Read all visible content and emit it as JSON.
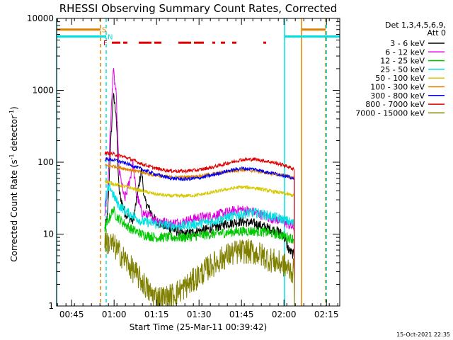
{
  "chart_data": {
    "type": "line",
    "title": "RHESSI Observing Summary Count Rates, Corrected",
    "xlabel": "Start Time (25-Mar-11 00:39:42)",
    "ylabel_main": "Corrected Count Rate (s",
    "ylabel_sup1": "-1",
    "ylabel_mid": " detector",
    "ylabel_sup2": "-1",
    "ylabel_end": ")",
    "yscale": "log",
    "xlim_minutes": [
      0,
      100
    ],
    "ylim": [
      1,
      10000
    ],
    "x_ticks": [
      {
        "t": 5.3,
        "label": "00:45"
      },
      {
        "t": 20.3,
        "label": "01:00"
      },
      {
        "t": 35.3,
        "label": "01:15"
      },
      {
        "t": 50.3,
        "label": "01:30"
      },
      {
        "t": 65.3,
        "label": "01:45"
      },
      {
        "t": 80.3,
        "label": "02:00"
      },
      {
        "t": 95.3,
        "label": "02:15"
      }
    ],
    "y_ticks": [
      {
        "v": 1,
        "label": "1"
      },
      {
        "v": 10,
        "label": "10"
      },
      {
        "v": 100,
        "label": "100"
      },
      {
        "v": 1000,
        "label": "1000"
      },
      {
        "v": 10000,
        "label": "10000"
      }
    ],
    "legend": {
      "header1": "Det 1,3,4,5,6,9,",
      "header2": "Att 0",
      "placement": "right"
    },
    "series": [
      {
        "name": "3 - 6 keV",
        "color": "#000000",
        "points": [
          [
            17,
            12
          ],
          [
            18,
            18
          ],
          [
            19,
            150
          ],
          [
            20,
            850
          ],
          [
            21,
            500
          ],
          [
            22,
            40
          ],
          [
            24,
            20
          ],
          [
            27,
            15
          ],
          [
            30,
            80
          ],
          [
            31,
            30
          ],
          [
            35,
            15
          ],
          [
            40,
            12
          ],
          [
            45,
            10
          ],
          [
            50,
            11
          ],
          [
            55,
            12
          ],
          [
            60,
            14
          ],
          [
            65,
            15
          ],
          [
            70,
            14
          ],
          [
            75,
            12
          ],
          [
            78,
            11
          ],
          [
            80,
            10
          ],
          [
            82,
            6
          ],
          [
            84,
            5
          ]
        ]
      },
      {
        "name": "6 - 12 keV",
        "color": "#e000e0",
        "points": [
          [
            17,
            20
          ],
          [
            18,
            40
          ],
          [
            19,
            300
          ],
          [
            20,
            1900
          ],
          [
            21,
            900
          ],
          [
            22,
            80
          ],
          [
            24,
            30
          ],
          [
            26,
            60
          ],
          [
            27,
            100
          ],
          [
            28,
            40
          ],
          [
            30,
            20
          ],
          [
            35,
            16
          ],
          [
            40,
            14
          ],
          [
            45,
            15
          ],
          [
            50,
            17
          ],
          [
            55,
            18
          ],
          [
            60,
            20
          ],
          [
            65,
            22
          ],
          [
            70,
            20
          ],
          [
            75,
            17
          ],
          [
            80,
            15
          ],
          [
            84,
            12
          ]
        ]
      },
      {
        "name": "12 - 25 keV",
        "color": "#00c800",
        "points": [
          [
            17,
            12
          ],
          [
            19,
            18
          ],
          [
            20,
            22
          ],
          [
            21,
            18
          ],
          [
            23,
            15
          ],
          [
            26,
            12
          ],
          [
            30,
            10
          ],
          [
            35,
            9
          ],
          [
            40,
            9
          ],
          [
            45,
            9
          ],
          [
            50,
            9.5
          ],
          [
            55,
            10
          ],
          [
            60,
            10.5
          ],
          [
            65,
            11
          ],
          [
            70,
            11
          ],
          [
            75,
            10.5
          ],
          [
            80,
            9.5
          ],
          [
            84,
            8.5
          ]
        ]
      },
      {
        "name": "25 - 50 keV",
        "color": "#00e0e0",
        "points": [
          [
            17,
            25
          ],
          [
            18,
            40
          ],
          [
            19,
            45
          ],
          [
            20,
            35
          ],
          [
            22,
            25
          ],
          [
            25,
            20
          ],
          [
            28,
            17
          ],
          [
            30,
            15
          ],
          [
            35,
            14
          ],
          [
            40,
            13
          ],
          [
            45,
            13
          ],
          [
            50,
            14
          ],
          [
            55,
            15
          ],
          [
            60,
            17
          ],
          [
            65,
            19
          ],
          [
            70,
            20
          ],
          [
            75,
            18
          ],
          [
            80,
            16
          ],
          [
            84,
            14
          ]
        ]
      },
      {
        "name": "50 - 100 keV",
        "color": "#d4c800",
        "points": [
          [
            17,
            55
          ],
          [
            20,
            50
          ],
          [
            25,
            45
          ],
          [
            30,
            40
          ],
          [
            35,
            36
          ],
          [
            40,
            34
          ],
          [
            45,
            34
          ],
          [
            50,
            35
          ],
          [
            55,
            38
          ],
          [
            60,
            42
          ],
          [
            65,
            45
          ],
          [
            70,
            44
          ],
          [
            75,
            40
          ],
          [
            80,
            37
          ],
          [
            84,
            34
          ]
        ]
      },
      {
        "name": "100 - 300 keV",
        "color": "#e08000",
        "points": [
          [
            17,
            90
          ],
          [
            20,
            88
          ],
          [
            25,
            80
          ],
          [
            30,
            72
          ],
          [
            35,
            66
          ],
          [
            40,
            62
          ],
          [
            45,
            62
          ],
          [
            50,
            64
          ],
          [
            55,
            68
          ],
          [
            60,
            74
          ],
          [
            65,
            78
          ],
          [
            70,
            76
          ],
          [
            75,
            70
          ],
          [
            80,
            66
          ],
          [
            84,
            60
          ]
        ]
      },
      {
        "name": "300 - 800 keV",
        "color": "#0000ee",
        "points": [
          [
            17,
            110
          ],
          [
            20,
            108
          ],
          [
            25,
            95
          ],
          [
            30,
            80
          ],
          [
            35,
            68
          ],
          [
            40,
            60
          ],
          [
            45,
            58
          ],
          [
            50,
            60
          ],
          [
            55,
            66
          ],
          [
            60,
            75
          ],
          [
            65,
            82
          ],
          [
            70,
            80
          ],
          [
            75,
            72
          ],
          [
            80,
            66
          ],
          [
            84,
            58
          ]
        ]
      },
      {
        "name": "800 - 7000 keV",
        "color": "#e00000",
        "points": [
          [
            17,
            135
          ],
          [
            20,
            130
          ],
          [
            25,
            115
          ],
          [
            30,
            95
          ],
          [
            35,
            82
          ],
          [
            40,
            76
          ],
          [
            45,
            75
          ],
          [
            50,
            78
          ],
          [
            55,
            85
          ],
          [
            60,
            96
          ],
          [
            65,
            108
          ],
          [
            70,
            110
          ],
          [
            75,
            102
          ],
          [
            80,
            92
          ],
          [
            84,
            80
          ]
        ]
      },
      {
        "name": "7000 - 15000 keV",
        "color": "#808000",
        "points": [
          [
            17,
            8
          ],
          [
            20,
            7
          ],
          [
            23,
            5
          ],
          [
            26,
            3.5
          ],
          [
            29,
            2.5
          ],
          [
            31,
            2
          ],
          [
            33,
            1.5
          ],
          [
            36,
            1.3
          ],
          [
            39,
            1.3
          ],
          [
            42,
            1.5
          ],
          [
            45,
            1.8
          ],
          [
            48,
            2.2
          ],
          [
            51,
            2.8
          ],
          [
            54,
            3.5
          ],
          [
            57,
            4.2
          ],
          [
            60,
            5
          ],
          [
            63,
            5.5
          ],
          [
            66,
            5.8
          ],
          [
            69,
            5.6
          ],
          [
            72,
            5.2
          ],
          [
            75,
            4.5
          ],
          [
            78,
            4
          ],
          [
            80,
            3.8
          ],
          [
            82,
            3.2
          ],
          [
            84,
            3
          ]
        ]
      }
    ],
    "state_bars": {
      "S": {
        "label": "S",
        "color": "#e08000",
        "segments": [
          [
            -1,
            15.5
          ],
          [
            86.5,
            95
          ]
        ],
        "y": 7000
      },
      "N": {
        "label": "N",
        "color": "#00e0e0",
        "segments": [
          [
            -1,
            17.5
          ],
          [
            80.5,
            100
          ]
        ],
        "y": 5600
      },
      "F": {
        "label": "F",
        "color": "#e00000",
        "segments": [
          [
            19.5,
            22.5
          ],
          [
            23.5,
            25
          ],
          [
            29,
            33.5
          ],
          [
            34.5,
            37
          ],
          [
            43,
            47.5
          ],
          [
            48.5,
            52
          ],
          [
            55,
            56
          ],
          [
            58,
            59.5
          ],
          [
            62,
            63.5
          ],
          [
            73,
            74
          ]
        ],
        "y": 4600
      }
    },
    "vertical_lines": [
      {
        "t": 0,
        "color": "#00e0e0",
        "style": "solid"
      },
      {
        "t": 15.5,
        "color": "#e08000",
        "style": "dashed"
      },
      {
        "t": 17.5,
        "color": "#00e0e0",
        "style": "dashed"
      },
      {
        "t": 80.5,
        "color": "#00e0e0",
        "style": "solid"
      },
      {
        "t": 86.5,
        "color": "#e08000",
        "style": "solid"
      },
      {
        "t": 95,
        "color": "#e08000",
        "style": "dashed"
      },
      {
        "t": 95.3,
        "color": "#00e0e0",
        "style": "dashed"
      }
    ]
  },
  "footer": {
    "date_stamp": "15-Oct-2021 22:35"
  }
}
